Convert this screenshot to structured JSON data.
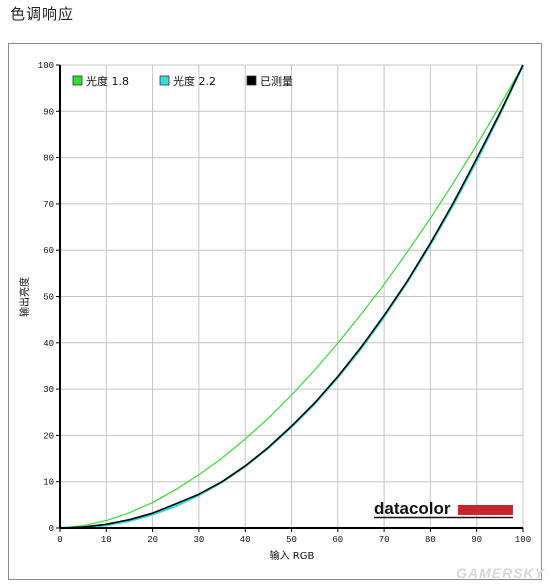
{
  "page": {
    "title": "色调响应"
  },
  "brand": {
    "logo_text": "datacolor",
    "accent_color": "#c8262b",
    "watermark": "GAMERSKY"
  },
  "chart_data": {
    "type": "line",
    "xlabel": "输入 RGB",
    "ylabel": "输出亮度",
    "xlim": [
      0,
      100
    ],
    "ylim": [
      0,
      100
    ],
    "x_ticks": [
      0,
      10,
      20,
      30,
      40,
      50,
      60,
      70,
      80,
      90,
      100
    ],
    "y_ticks": [
      0,
      10,
      20,
      30,
      40,
      50,
      60,
      70,
      80,
      90,
      100
    ],
    "grid": true,
    "legend_position": "top-left",
    "series": [
      {
        "name": "光度 1.8",
        "color": "#33dd33",
        "x": [
          0,
          5,
          10,
          15,
          20,
          25,
          30,
          35,
          40,
          45,
          50,
          55,
          60,
          65,
          70,
          75,
          80,
          85,
          90,
          95,
          100
        ],
        "y": [
          0,
          0.5,
          1.6,
          3.3,
          5.5,
          8.3,
          11.5,
          15.1,
          19.2,
          23.7,
          28.7,
          34.1,
          39.9,
          46.1,
          52.6,
          59.6,
          66.9,
          74.6,
          82.7,
          91.2,
          100
        ]
      },
      {
        "name": "光度 2.2",
        "color": "#33dddd",
        "x": [
          0,
          5,
          10,
          15,
          20,
          25,
          30,
          35,
          40,
          45,
          50,
          55,
          60,
          65,
          70,
          75,
          80,
          85,
          90,
          95,
          100
        ],
        "y": [
          0,
          0.1,
          0.6,
          1.5,
          2.9,
          4.7,
          7.1,
          9.9,
          13.3,
          17.3,
          21.8,
          26.8,
          32.5,
          38.7,
          45.6,
          53.1,
          61.2,
          69.9,
          79.3,
          89.3,
          100
        ]
      },
      {
        "name": "已测量",
        "color": "#000000",
        "x": [
          0,
          5,
          10,
          15,
          20,
          25,
          30,
          35,
          40,
          45,
          50,
          55,
          60,
          65,
          70,
          75,
          80,
          85,
          90,
          95,
          100
        ],
        "y": [
          0,
          0.2,
          0.8,
          1.8,
          3.2,
          5.2,
          7.3,
          10,
          13.4,
          17.4,
          22,
          27,
          32.7,
          39,
          45.9,
          53.3,
          61.5,
          70.3,
          79.8,
          89.6,
          100
        ]
      }
    ]
  }
}
